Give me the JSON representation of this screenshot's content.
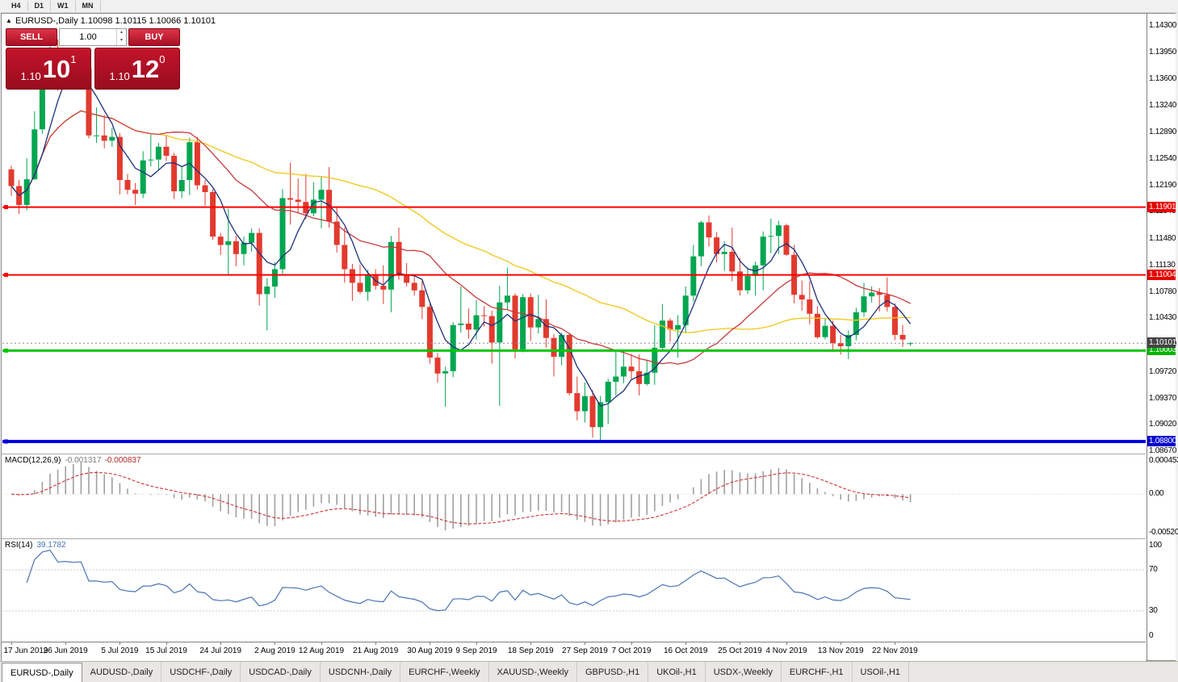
{
  "toolbar": {
    "timeframes": [
      "H4",
      "D1",
      "W1",
      "MN"
    ]
  },
  "chart_header": {
    "collapse_arrow": "▲",
    "symbol_period": "EURUSD-,Daily",
    "ohlc_text": "1.10098 1.10115 1.10066 1.10101"
  },
  "one_click": {
    "sell_label": "SELL",
    "buy_label": "BUY",
    "volume": "1.00",
    "volume_up_icon": "▴",
    "volume_down_icon": "▾",
    "sell_price_small": "1.10",
    "sell_price_big": "10",
    "sell_price_sup": "1",
    "buy_price_small": "1.10",
    "buy_price_big": "12",
    "buy_price_sup": "0"
  },
  "price_scale": {
    "ticks": [
      "1.14300",
      "1.13950",
      "1.13600",
      "1.13240",
      "1.12890",
      "1.12540",
      "1.12190",
      "1.11840",
      "1.11480",
      "1.11130",
      "1.10780",
      "1.10430",
      "1.10080",
      "1.09720",
      "1.09370",
      "1.09020",
      "1.08670"
    ]
  },
  "levels": [
    {
      "price": 1.11901,
      "label": "1.11901",
      "color": "#ff0000",
      "box_color": "#e60000",
      "width": 2
    },
    {
      "price": 1.11004,
      "label": "1.11004",
      "color": "#ff0000",
      "box_color": "#e60000",
      "width": 2
    },
    {
      "price": 1.10003,
      "label": "1.10003",
      "color": "#00c400",
      "box_color": "#00b400",
      "width": 3
    },
    {
      "price": 1.088,
      "label": "1.08800",
      "color": "#0000e0",
      "box_color": "#0000d0",
      "width": 4
    }
  ],
  "current_price": {
    "price": 1.10101,
    "label": "1.10101",
    "box_color": "#444444"
  },
  "macd_panel": {
    "name": "MACD(12,26,9)",
    "value_main": "-0.001317",
    "value_signal": "-0.000837",
    "scale": [
      "0.0004536",
      "0.00",
      "-0.00520"
    ]
  },
  "rsi_panel": {
    "name": "RSI(14)",
    "value": "39.1782",
    "scale": [
      "100",
      "70",
      "30",
      "0"
    ],
    "upper_level": 70,
    "lower_level": 30
  },
  "time_axis": [
    {
      "label": "17 Jun 2019",
      "i": 0
    },
    {
      "label": "26 Jun 2019",
      "i": 7
    },
    {
      "label": "5 Jul 2019",
      "i": 14
    },
    {
      "label": "15 Jul 2019",
      "i": 20
    },
    {
      "label": "24 Jul 2019",
      "i": 27
    },
    {
      "label": "2 Aug 2019",
      "i": 34
    },
    {
      "label": "12 Aug 2019",
      "i": 40
    },
    {
      "label": "21 Aug 2019",
      "i": 47
    },
    {
      "label": "30 Aug 2019",
      "i": 54
    },
    {
      "label": "9 Sep 2019",
      "i": 60
    },
    {
      "label": "18 Sep 2019",
      "i": 67
    },
    {
      "label": "27 Sep 2019",
      "i": 74
    },
    {
      "label": "7 Oct 2019",
      "i": 80
    },
    {
      "label": "16 Oct 2019",
      "i": 87
    },
    {
      "label": "25 Oct 2019",
      "i": 94
    },
    {
      "label": "4 Nov 2019",
      "i": 100
    },
    {
      "label": "13 Nov 2019",
      "i": 107
    },
    {
      "label": "22 Nov 2019",
      "i": 114
    }
  ],
  "tabs": [
    {
      "label": "EURUSD-,Daily",
      "active": true
    },
    {
      "label": "AUDUSD-,Daily"
    },
    {
      "label": "USDCHF-,Daily"
    },
    {
      "label": "USDCAD-,Daily"
    },
    {
      "label": "USDCNH-,Daily"
    },
    {
      "label": "EURCHF-,Weekly"
    },
    {
      "label": "XAUUSD-,Weekly"
    },
    {
      "label": "GBPUSD-,H1"
    },
    {
      "label": "UKOil-,H1"
    },
    {
      "label": "USDX-,Weekly"
    },
    {
      "label": "EURCHF-,H1"
    },
    {
      "label": "USOil-,H1"
    }
  ],
  "colors": {
    "bull": "#00a650",
    "bear": "#e23a2e",
    "macd_hist": "#a0a0a0",
    "macd_signal": "#cc2222",
    "rsi_line": "#4874b4",
    "panel_red": "#b11227"
  },
  "chart_data": {
    "type": "candlestick",
    "symbol": "EURUSD-",
    "timeframe": "Daily",
    "y_range": [
      1.0864,
      1.1446
    ],
    "macd_params": [
      12,
      26,
      9
    ],
    "rsi_period": 14,
    "moving_averages": [
      {
        "period": 45,
        "color": "#efc617"
      },
      {
        "period": 20,
        "color": "#c73b3b"
      },
      {
        "period": 5,
        "color": "#1c2f7c"
      }
    ],
    "candles": [
      [
        1.124,
        1.1245,
        1.1205,
        1.1218
      ],
      [
        1.1218,
        1.1226,
        1.1181,
        1.1193
      ],
      [
        1.1193,
        1.1255,
        1.1186,
        1.1227
      ],
      [
        1.1227,
        1.1317,
        1.1226,
        1.1293
      ],
      [
        1.1293,
        1.1378,
        1.1287,
        1.1368
      ],
      [
        1.1368,
        1.1403,
        1.1362,
        1.1399
      ],
      [
        1.1399,
        1.1412,
        1.1344,
        1.1365
      ],
      [
        1.1365,
        1.1392,
        1.135,
        1.1371
      ],
      [
        1.1371,
        1.139,
        1.1357,
        1.1368
      ],
      [
        1.1368,
        1.1394,
        1.1351,
        1.1373
      ],
      [
        1.1373,
        1.1378,
        1.1281,
        1.1285
      ],
      [
        1.1285,
        1.1322,
        1.1275,
        1.1285
      ],
      [
        1.1285,
        1.1312,
        1.1268,
        1.1278
      ],
      [
        1.1278,
        1.1295,
        1.127,
        1.1283
      ],
      [
        1.1283,
        1.1288,
        1.1207,
        1.1226
      ],
      [
        1.1226,
        1.1234,
        1.1207,
        1.1213
      ],
      [
        1.1213,
        1.1222,
        1.1193,
        1.1208
      ],
      [
        1.1208,
        1.1264,
        1.1202,
        1.1252
      ],
      [
        1.1252,
        1.1286,
        1.1244,
        1.1253
      ],
      [
        1.1253,
        1.1275,
        1.1239,
        1.127
      ],
      [
        1.127,
        1.1285,
        1.1251,
        1.1258
      ],
      [
        1.1258,
        1.1262,
        1.1201,
        1.1211
      ],
      [
        1.1211,
        1.1243,
        1.1202,
        1.1226
      ],
      [
        1.1226,
        1.1282,
        1.1206,
        1.1276
      ],
      [
        1.1276,
        1.1283,
        1.1213,
        1.1219
      ],
      [
        1.1219,
        1.1226,
        1.1192,
        1.121
      ],
      [
        1.121,
        1.1214,
        1.1147,
        1.1151
      ],
      [
        1.1151,
        1.1156,
        1.1127,
        1.114
      ],
      [
        1.114,
        1.1188,
        1.1101,
        1.1145
      ],
      [
        1.1145,
        1.1152,
        1.1112,
        1.1128
      ],
      [
        1.1128,
        1.1151,
        1.1113,
        1.1143
      ],
      [
        1.1143,
        1.1162,
        1.1131,
        1.1156
      ],
      [
        1.1156,
        1.1162,
        1.106,
        1.1075
      ],
      [
        1.1075,
        1.1096,
        1.1027,
        1.1085
      ],
      [
        1.1085,
        1.1117,
        1.107,
        1.1108
      ],
      [
        1.1108,
        1.1214,
        1.1101,
        1.1202
      ],
      [
        1.1202,
        1.1249,
        1.1167,
        1.12
      ],
      [
        1.12,
        1.1228,
        1.1183,
        1.1197
      ],
      [
        1.1197,
        1.1234,
        1.1174,
        1.1182
      ],
      [
        1.1182,
        1.1223,
        1.1178,
        1.12
      ],
      [
        1.12,
        1.123,
        1.1162,
        1.1213
      ],
      [
        1.1213,
        1.1243,
        1.1163,
        1.1171
      ],
      [
        1.1171,
        1.1191,
        1.113,
        1.114
      ],
      [
        1.114,
        1.1163,
        1.109,
        1.1108
      ],
      [
        1.1108,
        1.1115,
        1.1066,
        1.109
      ],
      [
        1.109,
        1.1114,
        1.1075,
        1.1078
      ],
      [
        1.1078,
        1.1107,
        1.1066,
        1.11
      ],
      [
        1.11,
        1.1108,
        1.1081,
        1.1086
      ],
      [
        1.1086,
        1.1113,
        1.1062,
        1.1081
      ],
      [
        1.1081,
        1.1152,
        1.1051,
        1.1144
      ],
      [
        1.1144,
        1.1163,
        1.1094,
        1.1101
      ],
      [
        1.1101,
        1.1116,
        1.1085,
        1.109
      ],
      [
        1.109,
        1.1098,
        1.1073,
        1.108
      ],
      [
        1.108,
        1.1093,
        1.1042,
        1.1058
      ],
      [
        1.1058,
        1.1062,
        1.0983,
        1.0991
      ],
      [
        1.0991,
        1.0997,
        1.0958,
        1.097
      ],
      [
        1.097,
        1.0979,
        1.0926,
        1.0973
      ],
      [
        1.0973,
        1.1038,
        1.0965,
        1.1034
      ],
      [
        1.1034,
        1.1085,
        1.1024,
        1.1036
      ],
      [
        1.1036,
        1.1056,
        1.1016,
        1.1028
      ],
      [
        1.1028,
        1.1067,
        1.1015,
        1.1047
      ],
      [
        1.1047,
        1.1059,
        1.1032,
        1.1046
      ],
      [
        1.1046,
        1.1053,
        1.0983,
        1.1011
      ],
      [
        1.1011,
        1.1086,
        1.0927,
        1.1064
      ],
      [
        1.1064,
        1.111,
        1.1055,
        1.1073
      ],
      [
        1.1073,
        1.1076,
        1.099,
        1.1002
      ],
      [
        1.1002,
        1.1075,
        1.0998,
        1.1071
      ],
      [
        1.1071,
        1.1076,
        1.1013,
        1.1031
      ],
      [
        1.1031,
        1.1074,
        1.1023,
        1.1042
      ],
      [
        1.1042,
        1.1068,
        1.1004,
        1.1017
      ],
      [
        1.1017,
        1.1022,
        1.0966,
        1.0992
      ],
      [
        1.0992,
        1.1024,
        1.0981,
        1.1021
      ],
      [
        1.1021,
        1.1024,
        1.0941,
        1.0944
      ],
      [
        1.0944,
        1.0966,
        1.0908,
        1.092
      ],
      [
        1.092,
        1.0958,
        1.0905,
        1.094
      ],
      [
        1.094,
        1.0948,
        1.0885,
        1.0899
      ],
      [
        1.0899,
        1.094,
        1.0879,
        1.0932
      ],
      [
        1.0932,
        1.0963,
        1.0903,
        1.0959
      ],
      [
        1.0959,
        1.0999,
        1.0941,
        1.0966
      ],
      [
        1.0966,
        1.0999,
        1.0957,
        1.0979
      ],
      [
        1.0979,
        1.0996,
        1.0962,
        1.0973
      ],
      [
        1.0973,
        1.0995,
        1.0941,
        1.0956
      ],
      [
        1.0956,
        1.0988,
        1.0954,
        1.0971
      ],
      [
        1.0971,
        1.1034,
        1.0955,
        1.1004
      ],
      [
        1.1004,
        1.1062,
        1.1002,
        1.104
      ],
      [
        1.104,
        1.1043,
        1.1012,
        1.1028
      ],
      [
        1.1028,
        1.1047,
        1.0991,
        1.1034
      ],
      [
        1.1034,
        1.1085,
        1.1023,
        1.1073
      ],
      [
        1.1073,
        1.114,
        1.1065,
        1.1125
      ],
      [
        1.1125,
        1.1172,
        1.1112,
        1.117
      ],
      [
        1.117,
        1.1179,
        1.1138,
        1.115
      ],
      [
        1.115,
        1.1157,
        1.1117,
        1.1128
      ],
      [
        1.1128,
        1.1145,
        1.1106,
        1.1131
      ],
      [
        1.1131,
        1.1163,
        1.1092,
        1.1105
      ],
      [
        1.1105,
        1.1123,
        1.1073,
        1.108
      ],
      [
        1.108,
        1.1108,
        1.1075,
        1.1099
      ],
      [
        1.1099,
        1.1118,
        1.1073,
        1.1113
      ],
      [
        1.1113,
        1.1158,
        1.108,
        1.1151
      ],
      [
        1.1151,
        1.1175,
        1.1129,
        1.1152
      ],
      [
        1.1152,
        1.1172,
        1.1128,
        1.1166
      ],
      [
        1.1166,
        1.1168,
        1.1126,
        1.1127
      ],
      [
        1.1127,
        1.114,
        1.1063,
        1.1074
      ],
      [
        1.1074,
        1.1093,
        1.1053,
        1.1068
      ],
      [
        1.1068,
        1.1092,
        1.1035,
        1.1049
      ],
      [
        1.1049,
        1.1059,
        1.1016,
        1.1018
      ],
      [
        1.1018,
        1.1043,
        1.1015,
        1.1033
      ],
      [
        1.1033,
        1.104,
        1.1002,
        1.101
      ],
      [
        1.101,
        1.1021,
        1.0995,
        1.1006
      ],
      [
        1.1006,
        1.1027,
        1.0989,
        1.1021
      ],
      [
        1.1021,
        1.1057,
        1.1014,
        1.1051
      ],
      [
        1.1051,
        1.109,
        1.1045,
        1.1072
      ],
      [
        1.1072,
        1.1085,
        1.1064,
        1.1077
      ],
      [
        1.1077,
        1.1083,
        1.1052,
        1.1074
      ],
      [
        1.1074,
        1.1097,
        1.1052,
        1.1058
      ],
      [
        1.1058,
        1.1063,
        1.1014,
        1.1021
      ],
      [
        1.1021,
        1.1034,
        1.1005,
        1.1015
      ],
      [
        1.10098,
        1.10115,
        1.10066,
        1.10101
      ]
    ]
  }
}
